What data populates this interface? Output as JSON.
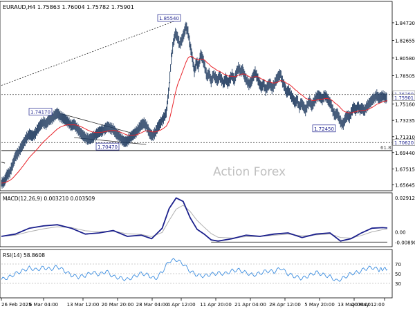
{
  "chart_data": {
    "type": "candlestick",
    "symbol_header": "EURAUD,H4  1.75863 1.76004 1.75782 1.75901",
    "watermark": "Action Forex",
    "y_ticks": [
      "1.84730",
      "1.82655",
      "1.80580",
      "1.78505",
      "1.76430",
      "1.75160",
      "1.73235",
      "1.71310",
      "1.69440",
      "1.67515",
      "1.65645"
    ],
    "x_ticks": [
      "26 Feb 2025",
      "6 Mar 04:00",
      "13 Mar 12:00",
      "20 Mar 20:00",
      "28 Mar 04:00",
      "4 Apr 12:00",
      "11 Apr 20:00",
      "21 Apr 04:00",
      "28 Apr 12:00",
      "5 May 20:00",
      "13 May 04:00",
      "20 May 12:00"
    ],
    "ylim": [
      1.6527,
      1.8676
    ],
    "levels": {
      "resistance": 1.7628,
      "support": 1.7062,
      "fib": 1.6968,
      "fib_label": "61.8"
    },
    "price_badges": {
      "current": "1.75901",
      "resistance": "1.76280",
      "support": "1.70620"
    },
    "annotations": [
      {
        "text": "1.85540",
        "y": 1.8554
      },
      {
        "text": "1.74170",
        "y": 1.7417
      },
      {
        "text": "1.70470",
        "y": 1.7047
      },
      {
        "text": "1.72450",
        "y": 1.7245
      }
    ],
    "price_path": [
      [
        0,
        1.6585
      ],
      [
        4,
        1.66
      ],
      [
        8,
        1.668
      ],
      [
        12,
        1.671
      ],
      [
        16,
        1.68
      ],
      [
        20,
        1.69
      ],
      [
        24,
        1.694
      ],
      [
        28,
        1.7
      ],
      [
        32,
        1.706
      ],
      [
        36,
        1.712
      ],
      [
        40,
        1.716
      ],
      [
        44,
        1.714
      ],
      [
        48,
        1.716
      ],
      [
        52,
        1.722
      ],
      [
        56,
        1.727
      ],
      [
        60,
        1.73
      ],
      [
        64,
        1.728
      ],
      [
        68,
        1.733
      ],
      [
        72,
        1.734
      ],
      [
        76,
        1.738
      ],
      [
        80,
        1.741
      ],
      [
        84,
        1.737
      ],
      [
        88,
        1.735
      ],
      [
        92,
        1.733
      ],
      [
        96,
        1.73
      ],
      [
        100,
        1.726
      ],
      [
        104,
        1.728
      ],
      [
        108,
        1.723
      ],
      [
        112,
        1.719
      ],
      [
        116,
        1.715
      ],
      [
        120,
        1.712
      ],
      [
        124,
        1.71
      ],
      [
        128,
        1.711
      ],
      [
        132,
        1.713
      ],
      [
        136,
        1.716
      ],
      [
        140,
        1.719
      ],
      [
        144,
        1.72
      ],
      [
        148,
        1.722
      ],
      [
        152,
        1.725
      ],
      [
        156,
        1.723
      ],
      [
        160,
        1.722
      ],
      [
        164,
        1.717
      ],
      [
        168,
        1.714
      ],
      [
        172,
        1.71
      ],
      [
        176,
        1.707
      ],
      [
        180,
        1.708
      ],
      [
        184,
        1.712
      ],
      [
        188,
        1.715
      ],
      [
        192,
        1.718
      ],
      [
        196,
        1.722
      ],
      [
        200,
        1.727
      ],
      [
        204,
        1.729
      ],
      [
        208,
        1.725
      ],
      [
        212,
        1.717
      ],
      [
        216,
        1.714
      ],
      [
        220,
        1.718
      ],
      [
        224,
        1.725
      ],
      [
        228,
        1.73
      ],
      [
        232,
        1.735
      ],
      [
        236,
        1.742
      ],
      [
        240,
        1.772
      ],
      [
        243,
        1.805
      ],
      [
        246,
        1.824
      ],
      [
        249,
        1.835
      ],
      [
        252,
        1.83
      ],
      [
        255,
        1.822
      ],
      [
        258,
        1.827
      ],
      [
        261,
        1.834
      ],
      [
        264,
        1.843
      ],
      [
        267,
        1.836
      ],
      [
        270,
        1.82
      ],
      [
        273,
        1.807
      ],
      [
        276,
        1.79
      ],
      [
        279,
        1.801
      ],
      [
        282,
        1.796
      ],
      [
        285,
        1.81
      ],
      [
        288,
        1.805
      ],
      [
        291,
        1.795
      ],
      [
        294,
        1.784
      ],
      [
        297,
        1.788
      ],
      [
        300,
        1.778
      ],
      [
        303,
        1.786
      ],
      [
        306,
        1.783
      ],
      [
        309,
        1.779
      ],
      [
        312,
        1.785
      ],
      [
        315,
        1.78
      ],
      [
        318,
        1.776
      ],
      [
        321,
        1.782
      ],
      [
        324,
        1.776
      ],
      [
        327,
        1.781
      ],
      [
        330,
        1.786
      ],
      [
        333,
        1.779
      ],
      [
        336,
        1.788
      ],
      [
        339,
        1.794
      ],
      [
        342,
        1.79
      ],
      [
        345,
        1.792
      ],
      [
        348,
        1.784
      ],
      [
        351,
        1.779
      ],
      [
        354,
        1.775
      ],
      [
        357,
        1.777
      ],
      [
        360,
        1.784
      ],
      [
        363,
        1.789
      ],
      [
        366,
        1.783
      ],
      [
        369,
        1.776
      ],
      [
        372,
        1.771
      ],
      [
        375,
        1.776
      ],
      [
        378,
        1.768
      ],
      [
        381,
        1.773
      ],
      [
        384,
        1.776
      ],
      [
        387,
        1.77
      ],
      [
        390,
        1.774
      ],
      [
        393,
        1.78
      ],
      [
        396,
        1.784
      ],
      [
        399,
        1.787
      ],
      [
        402,
        1.778
      ],
      [
        405,
        1.772
      ],
      [
        408,
        1.765
      ],
      [
        411,
        1.768
      ],
      [
        414,
        1.762
      ],
      [
        417,
        1.758
      ],
      [
        420,
        1.753
      ],
      [
        423,
        1.757
      ],
      [
        426,
        1.748
      ],
      [
        429,
        1.753
      ],
      [
        432,
        1.749
      ],
      [
        435,
        1.744
      ],
      [
        438,
        1.751
      ],
      [
        441,
        1.755
      ],
      [
        444,
        1.749
      ],
      [
        447,
        1.754
      ],
      [
        450,
        1.759
      ],
      [
        453,
        1.762
      ],
      [
        456,
        1.76
      ],
      [
        459,
        1.757
      ],
      [
        462,
        1.762
      ],
      [
        465,
        1.76
      ],
      [
        468,
        1.755
      ],
      [
        471,
        1.752
      ],
      [
        474,
        1.744
      ],
      [
        477,
        1.738
      ],
      [
        480,
        1.741
      ],
      [
        483,
        1.735
      ],
      [
        486,
        1.729
      ],
      [
        489,
        1.728
      ],
      [
        492,
        1.735
      ],
      [
        495,
        1.738
      ],
      [
        498,
        1.736
      ],
      [
        501,
        1.743
      ],
      [
        504,
        1.748
      ],
      [
        507,
        1.744
      ],
      [
        510,
        1.749
      ],
      [
        513,
        1.745
      ],
      [
        516,
        1.747
      ],
      [
        519,
        1.743
      ],
      [
        522,
        1.748
      ],
      [
        525,
        1.751
      ],
      [
        528,
        1.754
      ],
      [
        531,
        1.757
      ],
      [
        534,
        1.759
      ],
      [
        537,
        1.762
      ],
      [
        540,
        1.758
      ],
      [
        543,
        1.76
      ],
      [
        546,
        1.761
      ],
      [
        549,
        1.759
      ],
      [
        552,
        1.759
      ]
    ],
    "macd": {
      "label": "MACD(12,26,9) 0.003210 0.003509",
      "ylim": [
        -0.0105,
        0.031
      ],
      "y_ticks": [
        "0.029123",
        "0.00",
        "-0.008901"
      ],
      "path": [
        [
          0,
          -0.004
        ],
        [
          20,
          -0.002
        ],
        [
          40,
          0.003
        ],
        [
          60,
          0.005
        ],
        [
          80,
          0.006
        ],
        [
          100,
          0.003
        ],
        [
          120,
          -0.002
        ],
        [
          140,
          -0.001
        ],
        [
          160,
          0.001
        ],
        [
          180,
          -0.004
        ],
        [
          200,
          -0.003
        ],
        [
          215,
          -0.006
        ],
        [
          230,
          0.003
        ],
        [
          240,
          0.02
        ],
        [
          250,
          0.029
        ],
        [
          260,
          0.026
        ],
        [
          270,
          0.012
        ],
        [
          280,
          0.002
        ],
        [
          290,
          -0.002
        ],
        [
          300,
          -0.007
        ],
        [
          310,
          -0.008
        ],
        [
          330,
          -0.006
        ],
        [
          350,
          -0.003
        ],
        [
          370,
          -0.004
        ],
        [
          390,
          -0.002
        ],
        [
          410,
          -0.001
        ],
        [
          430,
          -0.005
        ],
        [
          450,
          -0.002
        ],
        [
          470,
          -0.001
        ],
        [
          485,
          -0.008
        ],
        [
          500,
          -0.006
        ],
        [
          515,
          -0.001
        ],
        [
          530,
          0.003
        ],
        [
          545,
          0.0035
        ],
        [
          552,
          0.0032
        ]
      ]
    },
    "rsi": {
      "label": "RSI(14) 58.8608",
      "ylim": [
        0,
        100
      ],
      "y_ticks": [
        "70",
        "50",
        "30"
      ],
      "path": [
        [
          0,
          38
        ],
        [
          10,
          42
        ],
        [
          20,
          50
        ],
        [
          30,
          56
        ],
        [
          40,
          62
        ],
        [
          50,
          58
        ],
        [
          60,
          63
        ],
        [
          70,
          59
        ],
        [
          80,
          65
        ],
        [
          90,
          56
        ],
        [
          100,
          47
        ],
        [
          110,
          43
        ],
        [
          120,
          46
        ],
        [
          130,
          53
        ],
        [
          140,
          48
        ],
        [
          150,
          55
        ],
        [
          160,
          44
        ],
        [
          170,
          41
        ],
        [
          180,
          38
        ],
        [
          190,
          44
        ],
        [
          200,
          51
        ],
        [
          210,
          47
        ],
        [
          220,
          39
        ],
        [
          230,
          54
        ],
        [
          240,
          76
        ],
        [
          250,
          79
        ],
        [
          260,
          70
        ],
        [
          270,
          55
        ],
        [
          280,
          47
        ],
        [
          290,
          45
        ],
        [
          300,
          49
        ],
        [
          310,
          51
        ],
        [
          320,
          50
        ],
        [
          330,
          56
        ],
        [
          340,
          58
        ],
        [
          350,
          52
        ],
        [
          360,
          47
        ],
        [
          370,
          51
        ],
        [
          380,
          56
        ],
        [
          390,
          54
        ],
        [
          400,
          62
        ],
        [
          410,
          49
        ],
        [
          420,
          44
        ],
        [
          430,
          40
        ],
        [
          440,
          46
        ],
        [
          450,
          53
        ],
        [
          460,
          48
        ],
        [
          470,
          44
        ],
        [
          480,
          35
        ],
        [
          490,
          42
        ],
        [
          500,
          50
        ],
        [
          510,
          53
        ],
        [
          520,
          60
        ],
        [
          530,
          63
        ],
        [
          540,
          58
        ],
        [
          545,
          60
        ],
        [
          552,
          59
        ]
      ]
    }
  },
  "colors": {
    "price": "#1f3a5f",
    "ma": "#e8232a",
    "macd": "#1a1f8c",
    "macd_signal": "#b0b0b0",
    "rsi": "#3d8ee0",
    "watermark": "#bfbfbf",
    "grid_level": "#333333",
    "badge_text": "#1a1f8c"
  }
}
